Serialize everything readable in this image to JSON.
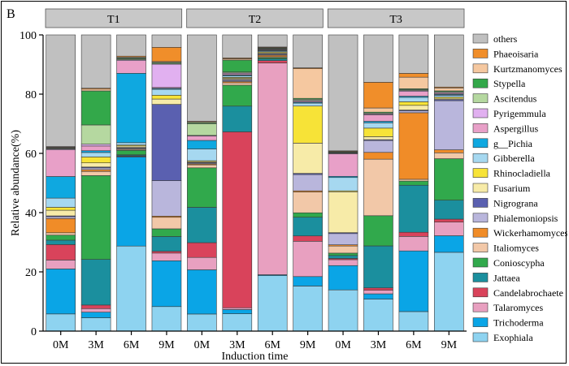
{
  "panel_label": "B",
  "chart_data": {
    "type": "bar",
    "stacked": true,
    "title": "",
    "xlabel": "Induction time",
    "ylabel": "Relative abundance(%)",
    "ylim": [
      0,
      100
    ],
    "yticks": [
      0,
      20,
      40,
      60,
      80,
      100
    ],
    "groups": [
      {
        "name": "T1",
        "categories": [
          "0M",
          "3M",
          "6M",
          "9M"
        ]
      },
      {
        "name": "T2",
        "categories": [
          "0M",
          "3M",
          "6M",
          "9M"
        ]
      },
      {
        "name": "T3",
        "categories": [
          "0M",
          "3M",
          "6M",
          "9M"
        ]
      }
    ],
    "legend_position": "right",
    "series": [
      {
        "name": "Exophiala",
        "color": "#8ed3f0",
        "values": [
          5.8,
          4.5,
          28.8,
          8.3,
          5.8,
          5.8,
          18.8,
          15.2,
          13.9,
          10.8,
          6.6,
          26.6
        ]
      },
      {
        "name": "Trichoderma",
        "color": "#0aa5e6",
        "values": [
          15.2,
          1.9,
          30.2,
          15.5,
          15.0,
          1.4,
          0.3,
          3.2,
          8.2,
          1.8,
          20.5,
          5.6
        ]
      },
      {
        "name": "Talaromyces",
        "color": "#e8a0c0",
        "values": [
          3.0,
          1.2,
          0.2,
          2.6,
          4.2,
          0.6,
          71.7,
          11.9,
          2.0,
          1.2,
          4.9,
          4.6
        ]
      },
      {
        "name": "Candelabrochaete",
        "color": "#d9435b",
        "values": [
          5.2,
          1.2,
          0.2,
          0.6,
          5.0,
          58.8,
          0.8,
          1.8,
          0.4,
          0.8,
          1.4,
          1.0
        ]
      },
      {
        "name": "Jattaea",
        "color": "#1b8f9e",
        "values": [
          1.5,
          15.4,
          0.3,
          5.0,
          12.0,
          8.6,
          0.6,
          6.3,
          1.0,
          14.2,
          15.9,
          6.4
        ]
      },
      {
        "name": "Conioscypha",
        "color": "#31a94c",
        "values": [
          1.7,
          28.3,
          1.5,
          2.6,
          13.4,
          7.0,
          0.4,
          1.5,
          0.8,
          10.2,
          1.4,
          14.0
        ]
      },
      {
        "name": "Italiomyces",
        "color": "#f2c8a8",
        "values": [
          0.8,
          1.4,
          0.3,
          3.9,
          1.0,
          0.8,
          0.3,
          7.0,
          2.4,
          19.1,
          0.6,
          2.0
        ]
      },
      {
        "name": "Wickerhamomyces",
        "color": "#f08c28",
        "values": [
          4.8,
          0.6,
          0.2,
          0.4,
          0.3,
          0.4,
          0.5,
          0.4,
          0.4,
          2.3,
          22.5,
          1.0
        ]
      },
      {
        "name": "Phialemoniopsis",
        "color": "#b9b6dc",
        "values": [
          0.6,
          0.6,
          0.3,
          12.0,
          0.3,
          0.4,
          0.3,
          5.5,
          3.8,
          4.0,
          0.6,
          16.6
        ]
      },
      {
        "name": "Nigrograna",
        "color": "#5a60b0",
        "values": [
          0.3,
          0.3,
          0.2,
          25.8,
          0.2,
          0.3,
          0.2,
          0.4,
          0.3,
          0.3,
          0.3,
          0.4
        ]
      },
      {
        "name": "Fusarium",
        "color": "#f7eba8",
        "values": [
          1.9,
          1.4,
          0.5,
          1.8,
          0.3,
          0.4,
          0.3,
          10.2,
          13.8,
          1.0,
          1.6,
          0.4
        ]
      },
      {
        "name": "Rhinocladiella",
        "color": "#f7e337",
        "values": [
          1.0,
          2.0,
          0.3,
          1.3,
          0.3,
          0.3,
          0.3,
          12.5,
          0.3,
          2.9,
          1.2,
          0.4
        ]
      },
      {
        "name": "Gibberella",
        "color": "#a6d8f0",
        "values": [
          3.1,
          1.5,
          0.8,
          2.0,
          4.0,
          0.5,
          0.3,
          1.0,
          4.5,
          1.8,
          1.5,
          0.6
        ]
      },
      {
        "name": "g__Pichia",
        "color": "#0fa8e0",
        "values": [
          7.3,
          0.6,
          23.5,
          0.3,
          2.9,
          0.3,
          0.2,
          0.3,
          0.4,
          0.5,
          0.4,
          0.3
        ]
      },
      {
        "name": "Aspergillus",
        "color": "#e8a0c8",
        "values": [
          9.0,
          1.6,
          4.3,
          0.3,
          1.5,
          0.4,
          0.2,
          0.3,
          7.6,
          2.2,
          1.6,
          0.3
        ]
      },
      {
        "name": "Pyrigemmula",
        "color": "#e1b0f0",
        "values": [
          0.3,
          0.6,
          0.3,
          7.9,
          0.2,
          0.3,
          0.2,
          0.3,
          0.2,
          0.3,
          0.3,
          0.3
        ]
      },
      {
        "name": "Ascitendus",
        "color": "#b5d8a0",
        "values": [
          0.2,
          6.5,
          0.3,
          0.3,
          4.0,
          0.3,
          0.2,
          0.4,
          0.2,
          0.3,
          0.3,
          0.3
        ]
      },
      {
        "name": "Stypella",
        "color": "#33a84a",
        "values": [
          0.2,
          11.5,
          0.3,
          0.3,
          0.3,
          4.0,
          0.2,
          0.3,
          0.2,
          0.3,
          0.3,
          0.3
        ]
      },
      {
        "name": "Kurtzmanomyces",
        "color": "#f5c8a0",
        "values": [
          0.2,
          0.6,
          0.3,
          0.3,
          0.3,
          0.4,
          0.2,
          10.0,
          0.2,
          1.4,
          3.9,
          1.0
        ]
      },
      {
        "name": "Phaeoisaria",
        "color": "#f08e2a",
        "values": [
          0.2,
          0.3,
          0.3,
          4.8,
          0.2,
          0.3,
          0.2,
          0.3,
          0.2,
          8.7,
          1.3,
          0.3
        ]
      },
      {
        "name": "others",
        "color": "#c0c0c0",
        "values": [
          37.7,
          18.0,
          7.2,
          4.2,
          29.3,
          7.7,
          4.1,
          11.1,
          39.1,
          16.0,
          13.0,
          17.6
        ]
      }
    ]
  }
}
